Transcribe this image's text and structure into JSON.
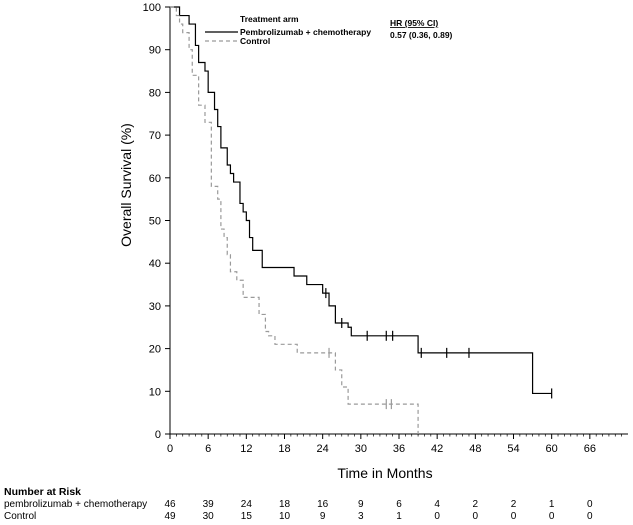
{
  "chart_data": {
    "type": "line",
    "title": "",
    "xlabel": "Time in Months",
    "ylabel": "Overall Survival (%)",
    "xlim": [
      0,
      72
    ],
    "ylim": [
      0,
      100
    ],
    "x_ticks": [
      0,
      6,
      12,
      18,
      24,
      30,
      36,
      42,
      48,
      54,
      60,
      66
    ],
    "y_ticks": [
      0,
      10,
      20,
      30,
      40,
      50,
      60,
      70,
      80,
      90,
      100
    ],
    "grid": false,
    "legend": {
      "title": "Treatment arm",
      "placement": "top-center",
      "entries": [
        "Pembrolizumab + chemotherapy",
        "Control"
      ]
    },
    "annotation": {
      "header": "HR (95% CI)",
      "value": "0.57 (0.36, 0.89)"
    },
    "series": [
      {
        "name": "Pembrolizumab + chemotherapy",
        "style": "solid",
        "color": "#000000",
        "step_points": [
          [
            0,
            100
          ],
          [
            1.5,
            98
          ],
          [
            3,
            96
          ],
          [
            4,
            91
          ],
          [
            4.5,
            87
          ],
          [
            5.5,
            85
          ],
          [
            6,
            80
          ],
          [
            7,
            76
          ],
          [
            7.5,
            72
          ],
          [
            8,
            67
          ],
          [
            9,
            63
          ],
          [
            9.5,
            61
          ],
          [
            10,
            59
          ],
          [
            11,
            54
          ],
          [
            11.5,
            52
          ],
          [
            12,
            50
          ],
          [
            12.5,
            46
          ],
          [
            13,
            43
          ],
          [
            14.5,
            39
          ],
          [
            19.5,
            37
          ],
          [
            21.5,
            35
          ],
          [
            24,
            33
          ],
          [
            25,
            30
          ],
          [
            26,
            26
          ],
          [
            28,
            25
          ],
          [
            28.5,
            23
          ],
          [
            39,
            19
          ],
          [
            57,
            9.5
          ],
          [
            60,
            9.5
          ]
        ],
        "censor_x": [
          24.5,
          27,
          31,
          34,
          35,
          39.5,
          43.5,
          47,
          60
        ]
      },
      {
        "name": "Control",
        "style": "dashed",
        "color": "#9a9a9a",
        "step_points": [
          [
            0,
            100
          ],
          [
            1,
            98
          ],
          [
            1.5,
            96
          ],
          [
            2,
            94
          ],
          [
            3,
            90
          ],
          [
            3.5,
            84
          ],
          [
            4.5,
            77
          ],
          [
            5.5,
            73
          ],
          [
            6.5,
            58
          ],
          [
            7.5,
            55
          ],
          [
            8,
            48
          ],
          [
            8.5,
            46
          ],
          [
            9,
            42
          ],
          [
            9.5,
            38
          ],
          [
            10.5,
            36
          ],
          [
            11.5,
            32
          ],
          [
            14,
            28
          ],
          [
            15,
            24
          ],
          [
            15.5,
            23
          ],
          [
            16.5,
            21
          ],
          [
            20,
            19
          ],
          [
            26,
            15
          ],
          [
            27,
            11
          ],
          [
            28,
            7
          ],
          [
            39,
            7
          ],
          [
            39,
            0
          ]
        ],
        "censor_x": [
          25,
          34,
          34.8
        ]
      }
    ]
  },
  "risk_table": {
    "title": "Number at Risk",
    "times": [
      0,
      6,
      12,
      18,
      24,
      30,
      36,
      42,
      48,
      54,
      60,
      66
    ],
    "rows": [
      {
        "label": "pembrolizumab + chemotherapy",
        "counts": [
          "46",
          "39",
          "24",
          "18",
          "16",
          "9",
          "6",
          "4",
          "2",
          "2",
          "1",
          "0"
        ]
      },
      {
        "label": "Control",
        "counts": [
          "49",
          "30",
          "15",
          "10",
          "9",
          "3",
          "1",
          "0",
          "0",
          "0",
          "0",
          "0"
        ]
      }
    ]
  }
}
